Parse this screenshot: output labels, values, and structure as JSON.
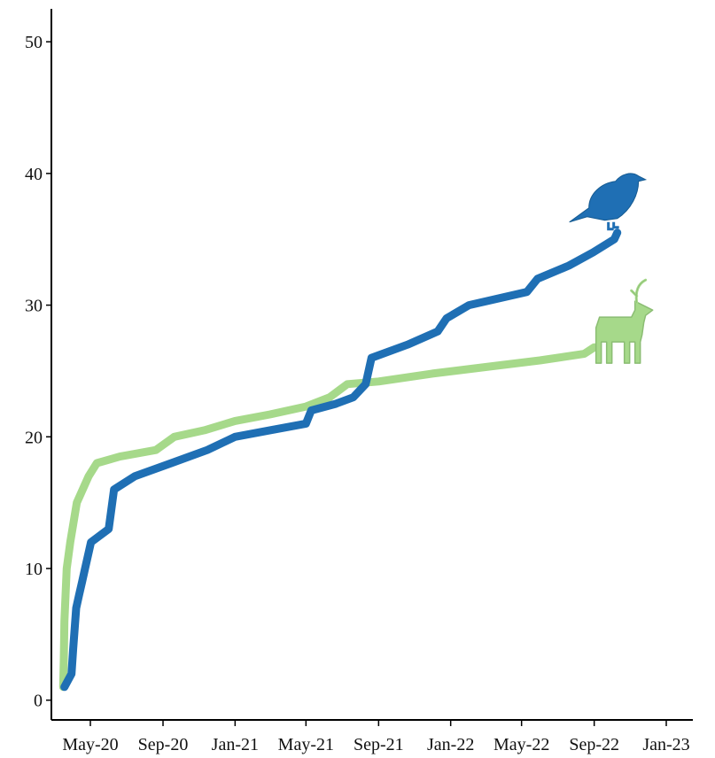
{
  "chart_data": {
    "type": "line",
    "title": "",
    "xlabel": "",
    "ylabel": "",
    "x_type": "date",
    "xlim": [
      "2020-02-25",
      "2023-02-15"
    ],
    "ylim": [
      -1.5,
      52.5
    ],
    "x_ticks": [
      {
        "value": "2020-05-01",
        "label": "May-20"
      },
      {
        "value": "2020-09-01",
        "label": "Sep-20"
      },
      {
        "value": "2021-01-01",
        "label": "Jan-21"
      },
      {
        "value": "2021-05-01",
        "label": "May-21"
      },
      {
        "value": "2021-09-01",
        "label": "Sep-21"
      },
      {
        "value": "2022-01-01",
        "label": "Jan-22"
      },
      {
        "value": "2022-05-01",
        "label": "May-22"
      },
      {
        "value": "2022-09-01",
        "label": "Sep-22"
      },
      {
        "value": "2023-01-01",
        "label": "Jan-23"
      }
    ],
    "y_ticks": [
      0,
      10,
      20,
      30,
      40,
      50
    ],
    "grid": false,
    "legend": "none",
    "series": [
      {
        "color": "#1f6fb4",
        "icon": "bird-icon",
        "points": [
          [
            "2020-03-18",
            1
          ],
          [
            "2020-03-30",
            2
          ],
          [
            "2020-04-02",
            4
          ],
          [
            "2020-04-07",
            7
          ],
          [
            "2020-04-12",
            8
          ],
          [
            "2020-04-17",
            9
          ],
          [
            "2020-04-22",
            10
          ],
          [
            "2020-05-02",
            12
          ],
          [
            "2020-06-01",
            13
          ],
          [
            "2020-06-10",
            16
          ],
          [
            "2020-07-15",
            17
          ],
          [
            "2020-09-15",
            18
          ],
          [
            "2020-11-15",
            19
          ],
          [
            "2021-01-01",
            20
          ],
          [
            "2021-03-01",
            20.5
          ],
          [
            "2021-05-01",
            21
          ],
          [
            "2021-05-10",
            22
          ],
          [
            "2021-06-20",
            22.5
          ],
          [
            "2021-07-20",
            23
          ],
          [
            "2021-08-10",
            24
          ],
          [
            "2021-08-20",
            26
          ],
          [
            "2021-10-20",
            27
          ],
          [
            "2021-12-10",
            28
          ],
          [
            "2021-12-25",
            29
          ],
          [
            "2022-02-01",
            30
          ],
          [
            "2022-05-10",
            31
          ],
          [
            "2022-05-28",
            32
          ],
          [
            "2022-07-20",
            33
          ],
          [
            "2022-08-30",
            34
          ],
          [
            "2022-10-05",
            35
          ],
          [
            "2022-10-10",
            35.5
          ]
        ]
      },
      {
        "color": "#a6d98a",
        "icon": "deer-icon",
        "points": [
          [
            "2020-03-16",
            1
          ],
          [
            "2020-03-17",
            3
          ],
          [
            "2020-03-18",
            6
          ],
          [
            "2020-03-22",
            10
          ],
          [
            "2020-03-28",
            12
          ],
          [
            "2020-04-08",
            15
          ],
          [
            "2020-04-28",
            17
          ],
          [
            "2020-05-12",
            18
          ],
          [
            "2020-06-20",
            18.5
          ],
          [
            "2020-08-20",
            19
          ],
          [
            "2020-09-20",
            20
          ],
          [
            "2020-11-10",
            20.5
          ],
          [
            "2021-01-01",
            21.2
          ],
          [
            "2021-03-01",
            21.7
          ],
          [
            "2021-05-01",
            22.3
          ],
          [
            "2021-06-10",
            23
          ],
          [
            "2021-07-10",
            24
          ],
          [
            "2021-09-01",
            24.2
          ],
          [
            "2021-12-01",
            24.8
          ],
          [
            "2022-03-01",
            25.3
          ],
          [
            "2022-06-01",
            25.8
          ],
          [
            "2022-08-15",
            26.3
          ],
          [
            "2022-09-01",
            26.8
          ]
        ]
      }
    ]
  }
}
